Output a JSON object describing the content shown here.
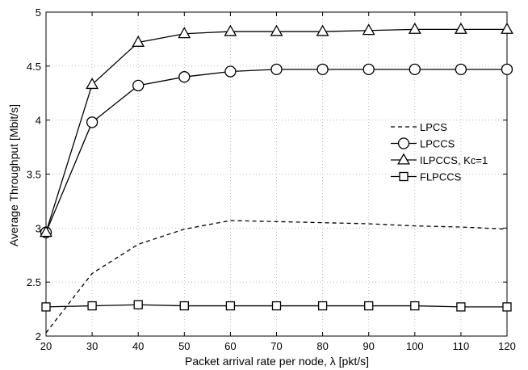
{
  "chart_data": {
    "type": "line",
    "title": "",
    "xlabel": "Packet arrival rate per node, λ [pkt/s]",
    "ylabel": "Average Throughput [Mbit/s]",
    "xlim": [
      20,
      120
    ],
    "ylim": [
      2,
      5
    ],
    "xticks": [
      20,
      30,
      40,
      50,
      60,
      70,
      80,
      90,
      100,
      110,
      120
    ],
    "yticks": [
      2,
      2.5,
      3,
      3.5,
      4,
      4.5,
      5
    ],
    "xtick_labels": [
      "20",
      "30",
      "40",
      "50",
      "60",
      "70",
      "80",
      "90",
      "100",
      "110",
      "120"
    ],
    "ytick_labels": [
      "2",
      "2.5",
      "3",
      "3.5",
      "4",
      "4.5",
      "5"
    ],
    "grid": true,
    "legend_position": "center-right",
    "series": [
      {
        "name": "LPCS",
        "style": "dashed",
        "marker": "none",
        "x": [
          20,
          30,
          40,
          50,
          60,
          70,
          80,
          90,
          100,
          110,
          120
        ],
        "y": [
          2.03,
          2.58,
          2.85,
          2.99,
          3.07,
          3.06,
          3.05,
          3.04,
          3.02,
          3.01,
          2.99
        ]
      },
      {
        "name": "LPCCS",
        "style": "solid",
        "marker": "circle",
        "x": [
          20,
          30,
          40,
          50,
          60,
          70,
          80,
          90,
          100,
          110,
          120
        ],
        "y": [
          2.96,
          3.98,
          4.32,
          4.4,
          4.45,
          4.47,
          4.47,
          4.47,
          4.47,
          4.47,
          4.47
        ]
      },
      {
        "name": "ILPCCS, Kc=1",
        "style": "solid",
        "marker": "triangle",
        "x": [
          20,
          30,
          40,
          50,
          60,
          70,
          80,
          90,
          100,
          110,
          120
        ],
        "y": [
          2.96,
          4.33,
          4.72,
          4.8,
          4.82,
          4.82,
          4.82,
          4.83,
          4.84,
          4.84,
          4.84
        ]
      },
      {
        "name": "FLPCCS",
        "style": "solid",
        "marker": "square",
        "x": [
          20,
          30,
          40,
          50,
          60,
          70,
          80,
          90,
          100,
          110,
          120
        ],
        "y": [
          2.27,
          2.28,
          2.29,
          2.28,
          2.28,
          2.28,
          2.28,
          2.28,
          2.28,
          2.27,
          2.27
        ]
      }
    ]
  }
}
